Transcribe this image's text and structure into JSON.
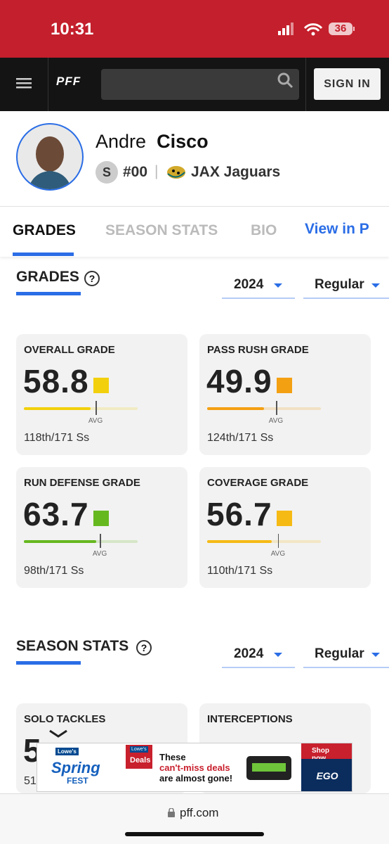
{
  "status_bar": {
    "time": "10:31",
    "battery": "36"
  },
  "nav": {
    "logo": "PFF",
    "button": "SIGN IN"
  },
  "player": {
    "first_name": "Andre",
    "last_name": "Cisco",
    "position": "S",
    "number": "#00",
    "separator": "|",
    "team": "JAX Jaguars"
  },
  "tabs": [
    "GRADES",
    "SEASON STATS",
    "BIO",
    "View in P"
  ],
  "grades": {
    "title": "GRADES",
    "help": "?",
    "season": "2024",
    "season_type": "Regular",
    "cards": [
      {
        "label": "OVERALL GRADE",
        "value": 58.8,
        "avg": 63,
        "avg_label": "AVG",
        "rank": "118th/171 Ss",
        "color": "#f2d00d"
      },
      {
        "label": "PASS RUSH GRADE",
        "value": 49.9,
        "avg": 60.5,
        "avg_label": "AVG",
        "rank": "124th/171 Ss",
        "color": "#f4a013"
      },
      {
        "label": "RUN DEFENSE GRADE",
        "value": 63.7,
        "avg": 66.7,
        "avg_label": "AVG",
        "rank": "98th/171 Ss",
        "color": "#66b81f"
      },
      {
        "label": "COVERAGE GRADE",
        "value": 56.7,
        "avg": 62.3,
        "avg_label": "AVG",
        "rank": "110th/171 Ss",
        "color": "#f6ba15"
      }
    ]
  },
  "season_stats": {
    "title": "SEASON STATS",
    "help": "?",
    "season": "2024",
    "season_type": "Regular",
    "cards": [
      {
        "label": "SOLO TACKLES",
        "value": "5",
        "rank": "51"
      },
      {
        "label": "INTERCEPTIONS"
      }
    ]
  },
  "ad": {
    "brand": "Lowe's",
    "spring": "Spring",
    "fest": "FEST",
    "brand2": "Lowe's",
    "deals": "Deals",
    "line1": "These",
    "line2": "can't-miss deals",
    "line3": "are almost gone!",
    "cta": "Shop now",
    "product": "EGO"
  },
  "footer": {
    "url": "pff.com"
  }
}
